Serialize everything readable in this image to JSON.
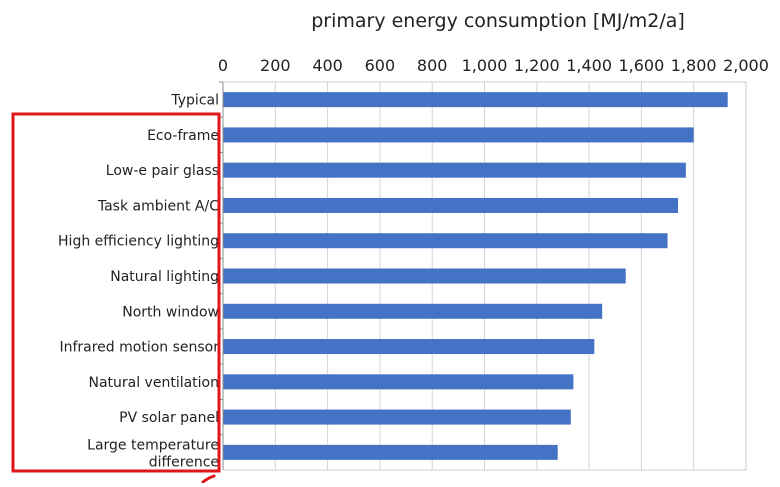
{
  "chart_data": {
    "type": "bar",
    "orientation": "horizontal",
    "title": "primary energy consumption [MJ/m2/a]",
    "categories": [
      "Typical",
      "Eco-frame",
      "Low-e pair glass",
      "Task ambient A/C",
      "High efficiency lighting",
      "Natural lighting",
      "North window",
      "Infrared motion sensor",
      "Natural ventilation",
      "PV solar panel",
      "Large temperature difference"
    ],
    "values": [
      1930,
      1800,
      1770,
      1740,
      1700,
      1540,
      1450,
      1420,
      1340,
      1330,
      1280
    ],
    "xlim": [
      0,
      2000
    ],
    "xticks": [
      "0",
      "200",
      "400",
      "600",
      "800",
      "1,000",
      "1,200",
      "1,400",
      "1,600",
      "1,800",
      "2,000"
    ],
    "grid": "vertical",
    "legend": "none",
    "bar_color": "#4472c4",
    "annotation_color": "#e0161b"
  }
}
